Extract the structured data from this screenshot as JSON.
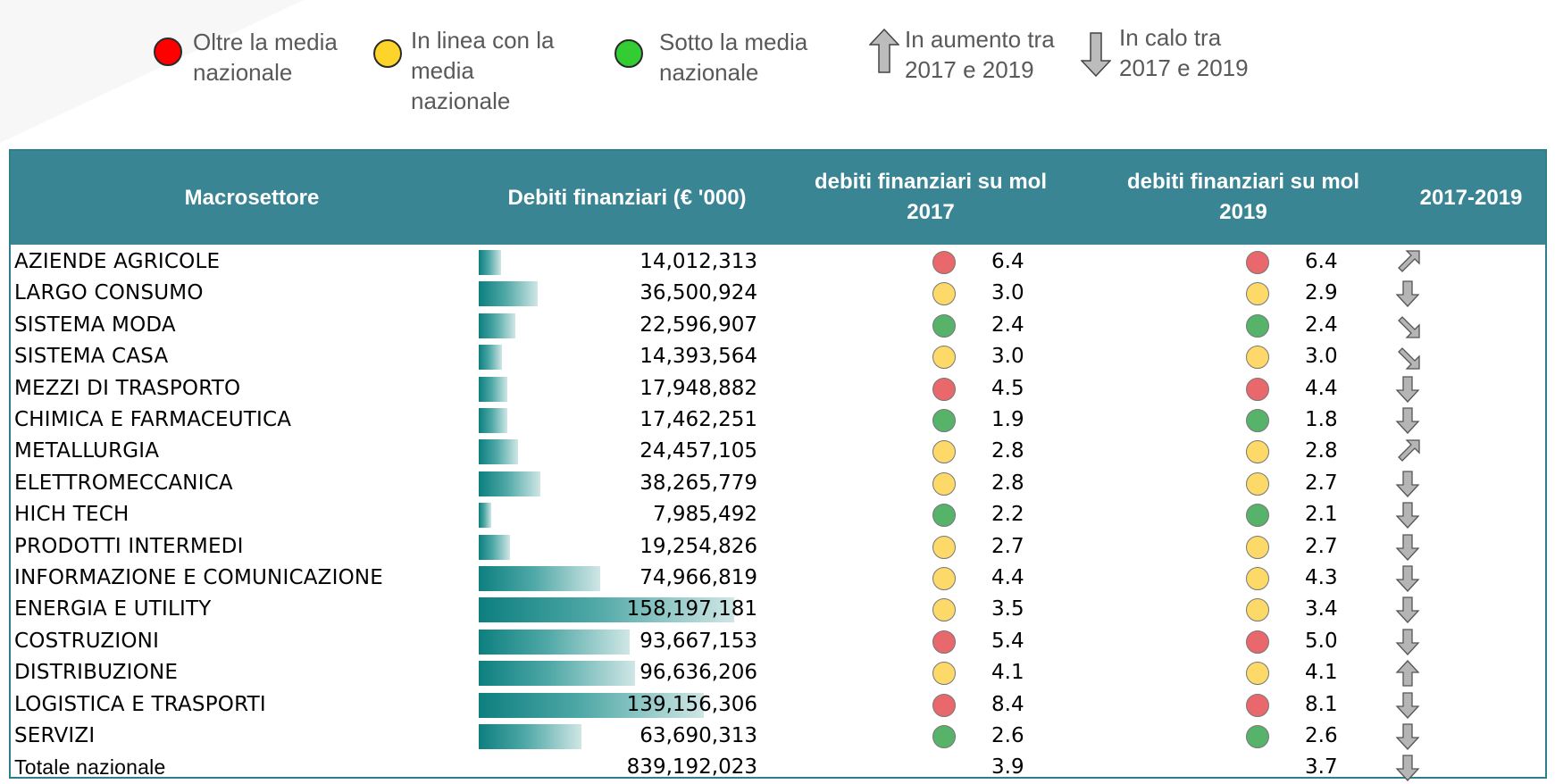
{
  "legend": {
    "above": "Oltre la media\nnazionale",
    "inline": "In linea  con la\nmedia\nnazionale",
    "below": "Sotto la media\nnazionale",
    "up": "In aumento tra\n2017 e 2019",
    "down": "In calo tra\n2017 e 2019"
  },
  "colors": {
    "red": "#e8686b",
    "yellow": "#fcd968",
    "green": "#57b36a",
    "legend_red": "#ff0000",
    "legend_yellow": "#ffd42a",
    "legend_green": "#33cc33",
    "header": "#3a8594"
  },
  "headers": {
    "macro": "Macrosettore",
    "debt": "Debiti finanziari (€ '000)",
    "ratio2017": "debiti finanziari su mol\n2017",
    "ratio2019": "debiti finanziari su mol\n2019",
    "trend": "2017-2019"
  },
  "rows": [
    {
      "name": "AZIENDE AGRICOLE",
      "debt": "14,012,313",
      "debt_value": 14012313,
      "r2017": "6.4",
      "c2017": "red",
      "r2019": "6.4",
      "c2019": "red",
      "trend": "up-right"
    },
    {
      "name": "LARGO CONSUMO",
      "debt": "36,500,924",
      "debt_value": 36500924,
      "r2017": "3.0",
      "c2017": "yellow",
      "r2019": "2.9",
      "c2019": "yellow",
      "trend": "down"
    },
    {
      "name": "SISTEMA MODA",
      "debt": "22,596,907",
      "debt_value": 22596907,
      "r2017": "2.4",
      "c2017": "green",
      "r2019": "2.4",
      "c2019": "green",
      "trend": "down-right"
    },
    {
      "name": "SISTEMA CASA",
      "debt": "14,393,564",
      "debt_value": 14393564,
      "r2017": "3.0",
      "c2017": "yellow",
      "r2019": "3.0",
      "c2019": "yellow",
      "trend": "down-right"
    },
    {
      "name": "MEZZI DI TRASPORTO",
      "debt": "17,948,882",
      "debt_value": 17948882,
      "r2017": "4.5",
      "c2017": "red",
      "r2019": "4.4",
      "c2019": "red",
      "trend": "down"
    },
    {
      "name": "CHIMICA E FARMACEUTICA",
      "debt": "17,462,251",
      "debt_value": 17462251,
      "r2017": "1.9",
      "c2017": "green",
      "r2019": "1.8",
      "c2019": "green",
      "trend": "down"
    },
    {
      "name": "METALLURGIA",
      "debt": "24,457,105",
      "debt_value": 24457105,
      "r2017": "2.8",
      "c2017": "yellow",
      "r2019": "2.8",
      "c2019": "yellow",
      "trend": "up-right"
    },
    {
      "name": "ELETTROMECCANICA",
      "debt": "38,265,779",
      "debt_value": 38265779,
      "r2017": "2.8",
      "c2017": "yellow",
      "r2019": "2.7",
      "c2019": "yellow",
      "trend": "down"
    },
    {
      "name": "HICH TECH",
      "debt": "7,985,492",
      "debt_value": 7985492,
      "r2017": "2.2",
      "c2017": "green",
      "r2019": "2.1",
      "c2019": "green",
      "trend": "down"
    },
    {
      "name": "PRODOTTI INTERMEDI",
      "debt": "19,254,826",
      "debt_value": 19254826,
      "r2017": "2.7",
      "c2017": "yellow",
      "r2019": "2.7",
      "c2019": "yellow",
      "trend": "down"
    },
    {
      "name": "INFORMAZIONE E COMUNICAZIONE",
      "debt": "74,966,819",
      "debt_value": 74966819,
      "r2017": "4.4",
      "c2017": "yellow",
      "r2019": "4.3",
      "c2019": "yellow",
      "trend": "down"
    },
    {
      "name": "ENERGIA E UTILITY",
      "debt": "158,197,181",
      "debt_value": 158197181,
      "r2017": "3.5",
      "c2017": "yellow",
      "r2019": "3.4",
      "c2019": "yellow",
      "trend": "down"
    },
    {
      "name": "COSTRUZIONI",
      "debt": "93,667,153",
      "debt_value": 93667153,
      "r2017": "5.4",
      "c2017": "red",
      "r2019": "5.0",
      "c2019": "red",
      "trend": "down"
    },
    {
      "name": "DISTRIBUZIONE",
      "debt": "96,636,206",
      "debt_value": 96636206,
      "r2017": "4.1",
      "c2017": "yellow",
      "r2019": "4.1",
      "c2019": "yellow",
      "trend": "up"
    },
    {
      "name": "LOGISTICA E TRASPORTI",
      "debt": "139,156,306",
      "debt_value": 139156306,
      "r2017": "8.4",
      "c2017": "red",
      "r2019": "8.1",
      "c2019": "red",
      "trend": "down"
    },
    {
      "name": "SERVIZI",
      "debt": "63,690,313",
      "debt_value": 63690313,
      "r2017": "2.6",
      "c2017": "green",
      "r2019": "2.6",
      "c2019": "green",
      "trend": "down"
    }
  ],
  "total": {
    "name": "Totale nazionale",
    "debt": "839,192,023",
    "r2017": "3.9",
    "r2019": "3.7",
    "trend": "down"
  }
}
